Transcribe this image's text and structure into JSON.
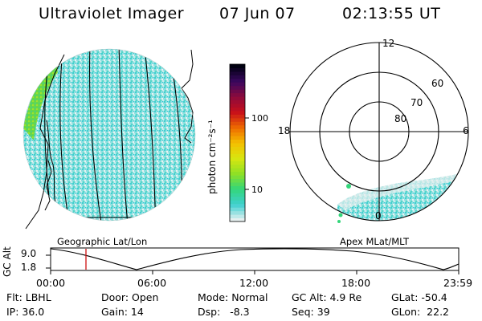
{
  "header": {
    "instrument": "Ultraviolet Imager",
    "date": "07 Jun 07",
    "time": "02:13:55 UT"
  },
  "geo_panel": {
    "caption": "Geographic Lat/Lon"
  },
  "colorbar": {
    "unit_label": "photon cm⁻²s⁻¹",
    "tick_100": "100",
    "tick_10": "10",
    "colors": [
      "#e6f0f0",
      "#3fd0d0",
      "#33d67a",
      "#8ee025",
      "#d8e610",
      "#f4c000",
      "#ee6a00",
      "#c8101a",
      "#8c0a3c",
      "#3a0860",
      "#000010"
    ]
  },
  "polar_panel": {
    "caption": "Apex MLat/MLT",
    "mlt_12": "12",
    "mlt_18": "18",
    "mlt_6": "6",
    "mlt_0": "0",
    "lat_60": "60",
    "lat_70": "70",
    "lat_80": "80"
  },
  "altitude_strip": {
    "axis_label": "GC Alt",
    "y_max": "9.0",
    "y_min": "1.8",
    "times": [
      "00:00",
      "06:00",
      "12:00",
      "18:00",
      "23:59"
    ],
    "marker_color": "#d01010"
  },
  "info": {
    "filter": "Flt: LBHL",
    "ip": "IP: 36.0",
    "door": "Door: Open",
    "gain": "Gain: 14",
    "mode": "Mode: Normal",
    "dsp": "Dsp:   -8.3",
    "gc_alt": "GC Alt: 4.9 Re",
    "seq": "Seq: 39",
    "glat": "GLat: -50.4",
    "glon": "GLon:  22.2"
  }
}
